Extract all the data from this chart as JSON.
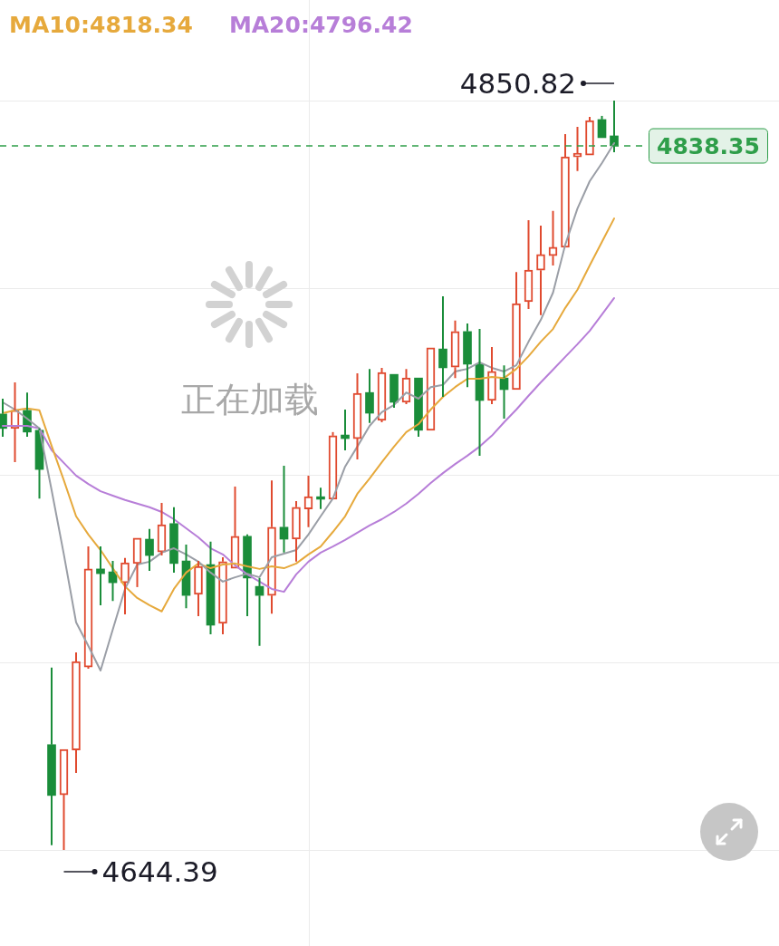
{
  "chart_data": {
    "type": "candlestick",
    "categories": [
      null,
      null,
      null,
      null,
      null,
      null,
      null,
      null,
      null,
      null,
      null,
      null,
      null,
      null,
      null,
      null,
      null,
      null,
      null,
      null,
      null,
      null,
      null,
      null,
      null,
      null,
      null,
      null,
      null,
      null,
      null,
      null,
      null,
      null,
      null,
      null,
      null,
      null,
      null,
      null,
      null,
      null,
      null,
      null,
      null,
      null,
      null,
      null,
      null,
      null,
      null
    ],
    "ohlc": [
      [
        4764.5,
        4768.7,
        4758.2,
        4760.5
      ],
      [
        4760.5,
        4773.2,
        4751.2,
        4765.5
      ],
      [
        4765.5,
        4770.4,
        4758.2,
        4759.5
      ],
      [
        4760.0,
        4760.5,
        4741.2,
        4749.2
      ],
      [
        4673.4,
        4694.6,
        4645.7,
        4659.4
      ],
      [
        4659.6,
        4672.1,
        4644.39,
        4672.1
      ],
      [
        4671.9,
        4698.8,
        4665.6,
        4696.3
      ],
      [
        4694.8,
        4728.0,
        4694.3,
        4721.8
      ],
      [
        4721.8,
        4728.0,
        4711.8,
        4720.5
      ],
      [
        4721.0,
        4724.0,
        4713.0,
        4718.0
      ],
      [
        4718.0,
        4724.8,
        4709.3,
        4723.5
      ],
      [
        4723.3,
        4730.3,
        4716.8,
        4730.3
      ],
      [
        4730.0,
        4732.8,
        4721.3,
        4725.5
      ],
      [
        4726.5,
        4740.0,
        4725.5,
        4734.0
      ],
      [
        4734.3,
        4738.8,
        4720.8,
        4723.3
      ],
      [
        4724.0,
        4728.5,
        4711.0,
        4714.5
      ],
      [
        4714.8,
        4724.0,
        4708.8,
        4722.5
      ],
      [
        4723.0,
        4729.3,
        4703.8,
        4706.3
      ],
      [
        4706.8,
        4725.0,
        4703.8,
        4723.8
      ],
      [
        4722.0,
        4744.5,
        4722.0,
        4730.8
      ],
      [
        4730.8,
        4731.3,
        4708.8,
        4719.3
      ],
      [
        4717.0,
        4719.3,
        4700.6,
        4714.5
      ],
      [
        4714.5,
        4746.2,
        4709.5,
        4733.3
      ],
      [
        4733.3,
        4750.2,
        4726.3,
        4730.0
      ],
      [
        4730.0,
        4740.5,
        4723.8,
        4738.8
      ],
      [
        4738.3,
        4747.5,
        4733.3,
        4741.7
      ],
      [
        4741.7,
        4744.2,
        4738.3,
        4741.0
      ],
      [
        4741.0,
        4759.5,
        4741.0,
        4758.5
      ],
      [
        4758.7,
        4765.7,
        4754.5,
        4757.7
      ],
      [
        4757.7,
        4775.7,
        4752.0,
        4770.2
      ],
      [
        4770.4,
        4776.9,
        4762.0,
        4764.7
      ],
      [
        4762.7,
        4777.2,
        4762.2,
        4775.9
      ],
      [
        4775.4,
        4775.4,
        4766.2,
        4767.7
      ],
      [
        4767.7,
        4776.9,
        4767.2,
        4774.4
      ],
      [
        4774.4,
        4774.4,
        4758.2,
        4760.0
      ],
      [
        4760.0,
        4782.7,
        4760.0,
        4782.7
      ],
      [
        4782.4,
        4796.9,
        4769.2,
        4777.2
      ],
      [
        4777.4,
        4790.2,
        4774.4,
        4787.2
      ],
      [
        4787.2,
        4789.4,
        4771.9,
        4778.2
      ],
      [
        4778.2,
        4787.9,
        4753.0,
        4768.2
      ],
      [
        4768.2,
        4782.9,
        4767.2,
        4776.2
      ],
      [
        4774.4,
        4777.9,
        4763.2,
        4771.2
      ],
      [
        4771.2,
        4803.6,
        4771.2,
        4794.9
      ],
      [
        4795.4,
        4817.9,
        4793.4,
        4804.1
      ],
      [
        4804.1,
        4816.4,
        4791.7,
        4808.4
      ],
      [
        4808.1,
        4820.4,
        4805.4,
        4810.4
      ],
      [
        4810.4,
        4841.6,
        4810.4,
        4835.3
      ],
      [
        4835.3,
        4843.6,
        4831.4,
        4836.3
      ],
      [
        4835.8,
        4846.3,
        4835.8,
        4845.3
      ],
      [
        4845.6,
        4846.6,
        4840.3,
        4840.6
      ],
      [
        4841.1,
        4850.82,
        4836.6,
        4838.35
      ]
    ],
    "colors": [
      "#1a8d3a",
      "#e04a2f",
      "#1a8d3a",
      "#1a8d3a",
      "#1a8d3a",
      "#e04a2f",
      "#e04a2f",
      "#e04a2f",
      "#1a8d3a",
      "#1a8d3a",
      "#e04a2f",
      "#e04a2f",
      "#1a8d3a",
      "#e04a2f",
      "#1a8d3a",
      "#1a8d3a",
      "#e04a2f",
      "#1a8d3a",
      "#e04a2f",
      "#e04a2f",
      "#1a8d3a",
      "#1a8d3a",
      "#e04a2f",
      "#1a8d3a",
      "#e04a2f",
      "#e04a2f",
      "#1a8d3a",
      "#e04a2f",
      "#1a8d3a",
      "#e04a2f",
      "#1a8d3a",
      "#e04a2f",
      "#1a8d3a",
      "#e04a2f",
      "#1a8d3a",
      "#e04a2f",
      "#1a8d3a",
      "#e04a2f",
      "#1a8d3a",
      "#1a8d3a",
      "#e04a2f",
      "#1a8d3a",
      "#e04a2f",
      "#e04a2f",
      "#e04a2f",
      "#e04a2f",
      "#e04a2f",
      "#e04a2f",
      "#e04a2f",
      "#1a8d3a",
      "#1a8d3a"
    ],
    "series": [
      {
        "type": "line",
        "color": "#9a9ea6",
        "values": [
          4767.7,
          4765.7,
          4763.2,
          4760.5,
          4743.5,
          4725.8,
          4707.1,
          4700.6,
          4693.8,
          4705.1,
          4716.3,
          4723.0,
          4723.8,
          4726.3,
          4727.5,
          4725.8,
          4723.8,
          4720.8,
          4718.3,
          4719.5,
          4720.5,
          4719.5,
          4725.0,
          4726.0,
          4727.0,
          4731.3,
          4736.3,
          4741.2,
          4750.0,
          4755.5,
          4761.2,
          4765.0,
          4767.0,
          4770.4,
          4768.7,
          4771.9,
          4772.5,
          4776.2,
          4776.9,
          4778.7,
          4777.2,
          4776.2,
          4777.9,
          4784.4,
          4790.4,
          4797.9,
          4811.1,
          4821.1,
          4828.6,
          4833.6,
          4839.1
        ]
      },
      {
        "type": "line",
        "name": "MA10:4818.34",
        "color": "#e6a93c",
        "values": [
          4764.7,
          4765.5,
          4766.0,
          4765.5,
          4755.7,
          4746.2,
          4736.3,
          4731.3,
          4727.0,
          4722.0,
          4717.0,
          4713.8,
          4711.8,
          4710.1,
          4716.3,
          4720.8,
          4723.3,
          4722.0,
          4723.0,
          4723.3,
          4722.5,
          4721.8,
          4722.5,
          4722.0,
          4723.3,
          4725.8,
          4728.0,
          4732.0,
          4736.3,
          4742.5,
          4746.7,
          4751.2,
          4755.5,
          4759.5,
          4761.7,
          4765.7,
          4769.2,
          4771.9,
          4774.2,
          4774.2,
          4774.7,
          4774.4,
          4776.9,
          4780.4,
          4784.4,
          4787.9,
          4793.7,
          4798.7,
          4805.4,
          4811.9,
          4818.34
        ]
      },
      {
        "type": "line",
        "name": "MA20:4796.42",
        "color": "#b77ed8",
        "values": [
          4761.2,
          4761.2,
          4761.2,
          4760.5,
          4754.5,
          4751.0,
          4747.5,
          4745.2,
          4743.2,
          4742.0,
          4740.8,
          4739.8,
          4738.8,
          4737.5,
          4735.5,
          4733.0,
          4730.5,
          4727.5,
          4725.8,
          4722.8,
          4720.3,
          4718.3,
          4716.3,
          4715.5,
          4720.3,
          4723.8,
          4726.3,
          4728.0,
          4729.8,
          4731.8,
          4733.8,
          4735.5,
          4737.5,
          4739.8,
          4742.5,
          4745.5,
          4748.2,
          4750.7,
          4753.0,
          4755.5,
          4758.5,
          4762.2,
          4765.7,
          4769.5,
          4773.2,
          4776.7,
          4780.2,
          4783.7,
          4787.4,
          4791.9,
          4796.42
        ]
      }
    ],
    "ylim": [
      4644.39,
      4850.82
    ],
    "yticks": [
      {
        "value": 4644.39,
        "label": null
      },
      {
        "value": 4696.0,
        "label": null
      },
      {
        "value": 4747.61,
        "label": null
      },
      {
        "value": 4799.21,
        "label": null
      },
      {
        "value": 4850.82,
        "label": null
      }
    ],
    "grid": "y",
    "tick_labels": false,
    "legend": "top",
    "ref_lines": [
      {
        "axis": "y",
        "value": 4838.35,
        "label": "4838.35",
        "color": "#2f9e4a",
        "line_style": "dashed"
      }
    ],
    "annotations": [
      "4850.82",
      "4644.39",
      "正在加载"
    ]
  }
}
